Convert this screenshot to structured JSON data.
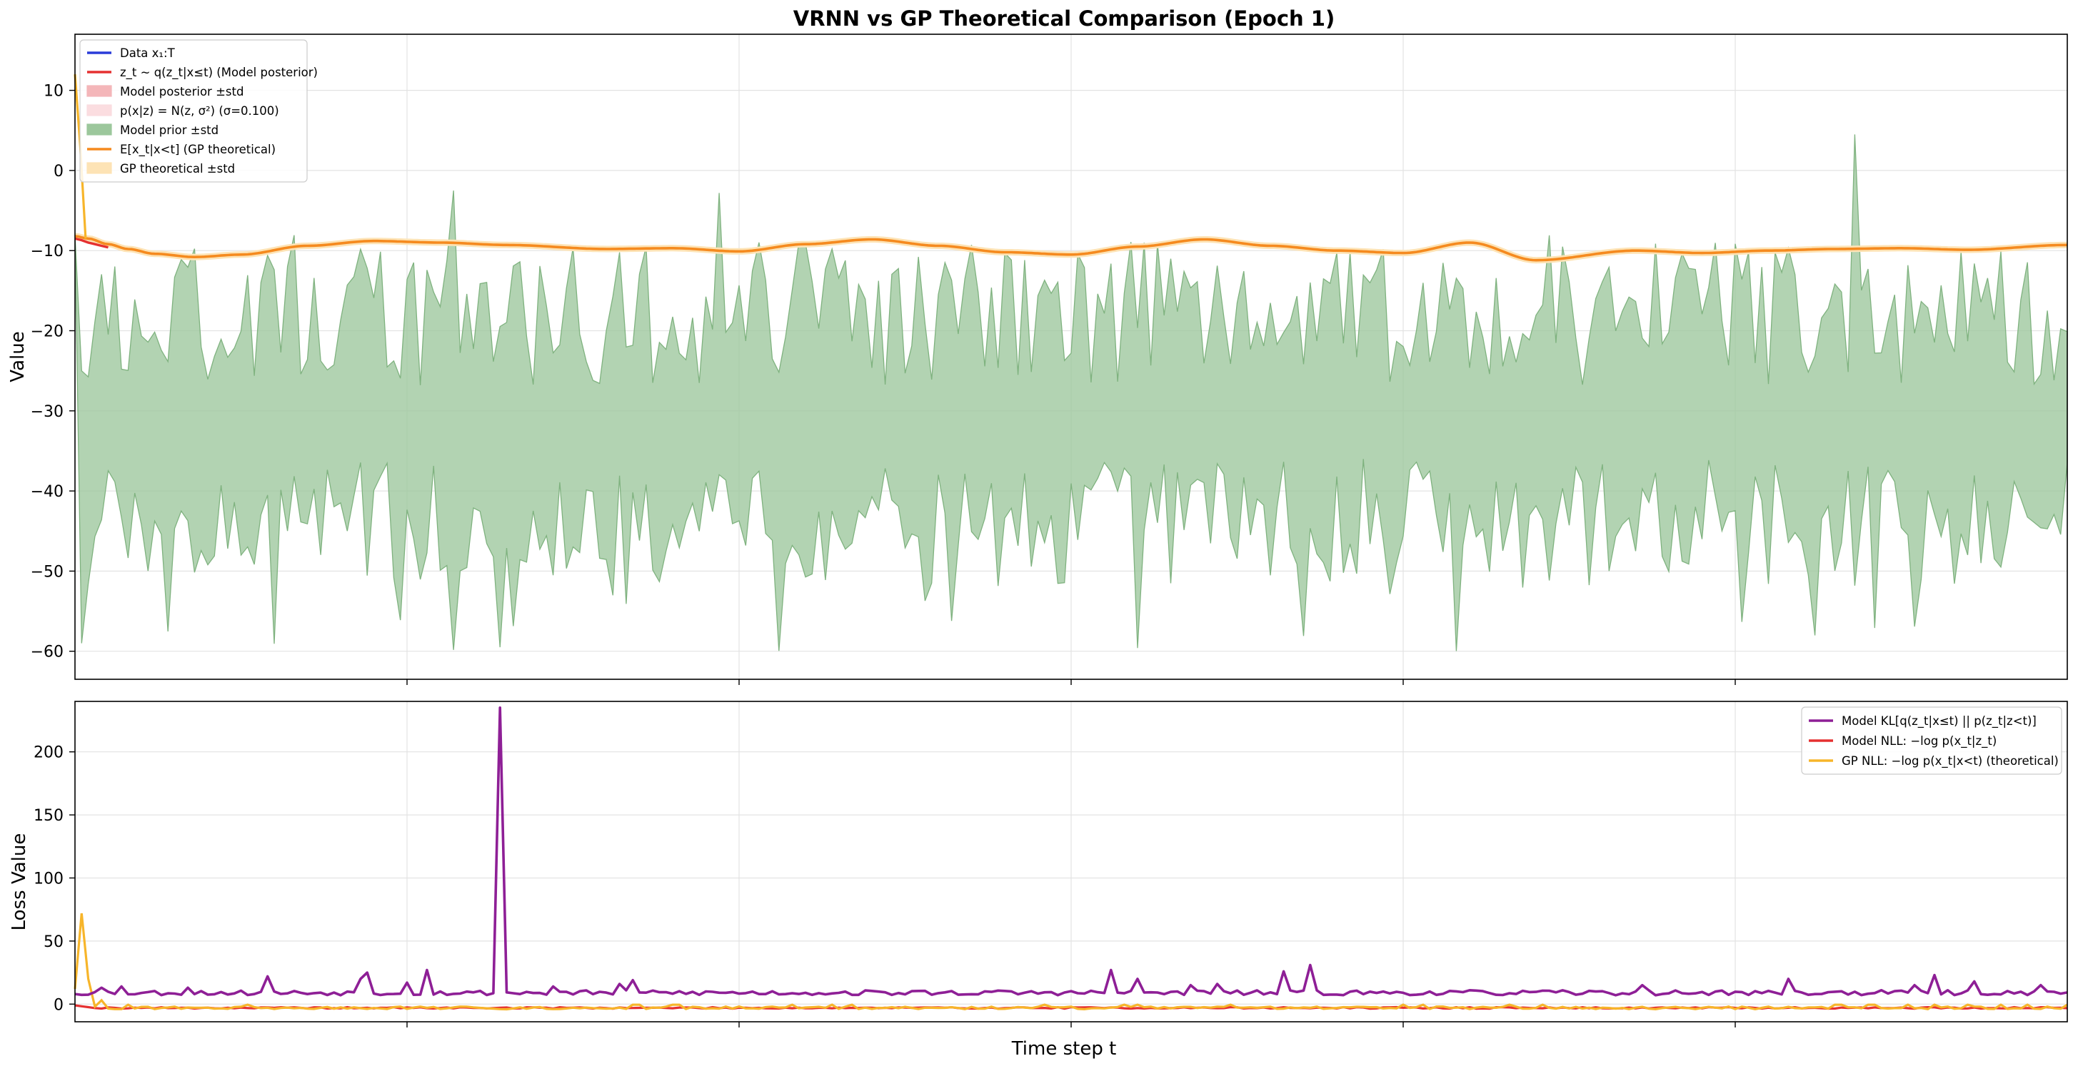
{
  "title": "VRNN vs GP Theoretical Comparison (Epoch 1)",
  "colors": {
    "data": "#2a3bd9",
    "posterior": "#e53030",
    "posterior_band": "#f4b6b9",
    "likelihood_band": "#fbdde0",
    "prior_band": "#9cc79c",
    "prior_edge": "#7fb27f",
    "gp_mean": "#f58a1f",
    "gp_band": "#fde3b5",
    "kl": "#8e1f96",
    "model_nll": "#e53030",
    "gp_nll": "#f7b52a",
    "grid": "#e3e3e3"
  },
  "chart_data": [
    {
      "type": "line",
      "panel": "top",
      "ylabel": "Value",
      "ylim": [
        -63.5,
        17
      ],
      "yticks": [
        10,
        0,
        -10,
        -20,
        -30,
        -40,
        -50,
        -60
      ],
      "xlim": [
        0,
        300
      ],
      "x_gridlines": [
        50,
        100,
        150,
        200,
        250
      ],
      "grid": true,
      "legend_position": "upper-left",
      "legend": [
        {
          "label": "Data x₁:T",
          "kind": "line",
          "color_key": "data"
        },
        {
          "label": "z_t ~ q(z_t|x≤t) (Model posterior)",
          "kind": "line",
          "color_key": "posterior"
        },
        {
          "label": "Model posterior ±std",
          "kind": "patch",
          "color_key": "posterior_band"
        },
        {
          "label": "p(x|z) = N(z, σ²) (σ=0.100)",
          "kind": "patch",
          "color_key": "likelihood_band"
        },
        {
          "label": "Model prior ±std",
          "kind": "patch",
          "color_key": "prior_band"
        },
        {
          "label": "E[x_t|x<t] (GP theoretical)",
          "kind": "line",
          "color_key": "gp_mean"
        },
        {
          "label": "GP theoretical ±std",
          "kind": "patch",
          "color_key": "gp_band"
        }
      ],
      "gp_mean_anchors": {
        "x": [
          0,
          2,
          5,
          8,
          12,
          18,
          25,
          35,
          45,
          55,
          65,
          80,
          90,
          100,
          110,
          120,
          130,
          140,
          150,
          160,
          170,
          180,
          190,
          200,
          210,
          220,
          235,
          245,
          255,
          265,
          275,
          285,
          300
        ],
        "y": [
          -8.2,
          -8.5,
          -9.2,
          -9.8,
          -10.4,
          -10.8,
          -10.5,
          -9.4,
          -8.8,
          -9.0,
          -9.3,
          -9.8,
          -9.7,
          -10.1,
          -9.2,
          -8.6,
          -9.4,
          -10.2,
          -10.5,
          -9.5,
          -8.6,
          -9.4,
          -10.0,
          -10.3,
          -9.0,
          -11.2,
          -10.0,
          -10.3,
          -10.0,
          -9.8,
          -9.7,
          -9.9,
          -9.3
        ]
      },
      "gp_spike": {
        "x": [
          0,
          0.8,
          1.6
        ],
        "y": [
          12,
          3,
          -8.5
        ]
      },
      "posterior_line": {
        "x": [
          0,
          1,
          2,
          3,
          4,
          5
        ],
        "y": [
          -8.5,
          -8.7,
          -9.0,
          -9.2,
          -9.4,
          -9.6
        ]
      },
      "prior_band_seed": 7,
      "prior_band_n": 301
    },
    {
      "type": "line",
      "panel": "bottom",
      "ylabel": "Loss Value",
      "xlabel": "Time step t",
      "ylim": [
        -14,
        240
      ],
      "yticks": [
        0,
        50,
        100,
        150,
        200
      ],
      "xlim": [
        0,
        300
      ],
      "x_gridlines": [
        50,
        100,
        150,
        200,
        250
      ],
      "grid": true,
      "legend_position": "upper-right",
      "legend": [
        {
          "label": "Model KL[q(z_t|x≤t) || p(z_t|z<t)]",
          "kind": "line",
          "color_key": "kl"
        },
        {
          "label": "Model NLL: −log p(x_t|z_t)",
          "kind": "line",
          "color_key": "model_nll"
        },
        {
          "label": "GP NLL: −log p(x_t|x<t) (theoretical)",
          "kind": "line",
          "color_key": "gp_nll"
        }
      ],
      "kl_spikes": [
        {
          "x": 4,
          "y": 13
        },
        {
          "x": 7,
          "y": 14
        },
        {
          "x": 17,
          "y": 13
        },
        {
          "x": 29,
          "y": 22
        },
        {
          "x": 43,
          "y": 20
        },
        {
          "x": 44,
          "y": 25
        },
        {
          "x": 50,
          "y": 17
        },
        {
          "x": 53,
          "y": 27
        },
        {
          "x": 64,
          "y": 235
        },
        {
          "x": 72,
          "y": 14
        },
        {
          "x": 82,
          "y": 16
        },
        {
          "x": 84,
          "y": 19
        },
        {
          "x": 156,
          "y": 27
        },
        {
          "x": 160,
          "y": 20
        },
        {
          "x": 168,
          "y": 15
        },
        {
          "x": 172,
          "y": 16
        },
        {
          "x": 182,
          "y": 26
        },
        {
          "x": 186,
          "y": 31
        },
        {
          "x": 236,
          "y": 15
        },
        {
          "x": 258,
          "y": 20
        },
        {
          "x": 277,
          "y": 15
        },
        {
          "x": 280,
          "y": 23
        },
        {
          "x": 286,
          "y": 18
        },
        {
          "x": 296,
          "y": 15
        }
      ],
      "kl_base": 9,
      "gp_nll_start": {
        "x": [
          0,
          1,
          2,
          3,
          4
        ],
        "y": [
          12,
          72,
          20,
          -2,
          3
        ]
      },
      "nll_base": -3
    }
  ]
}
